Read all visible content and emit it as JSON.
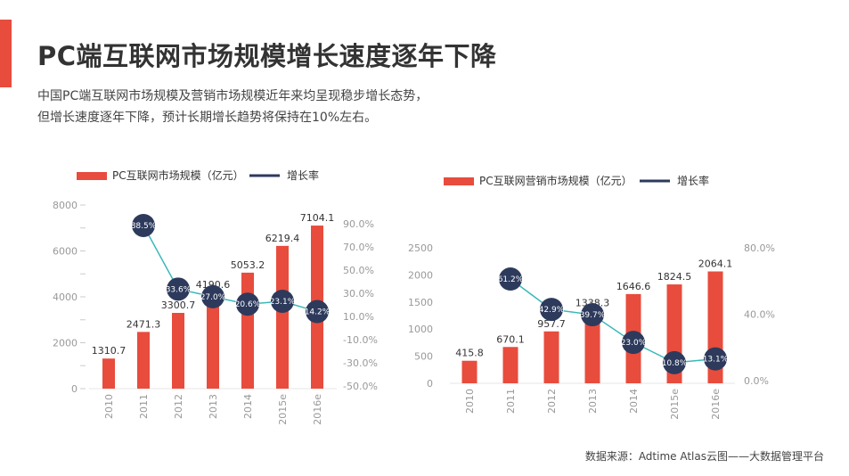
{
  "header": {
    "title": "PC端互联网市场规模增长速度逐年下降",
    "subtitle_line1": "中国PC端互联网市场规模及营销市场规模近年来均呈现稳步增长态势，",
    "subtitle_line2": "但增长速度逐年下降，预计长期增长趋势将保持在10%左右。"
  },
  "footer": {
    "source": "数据来源：Adtime  Atlas云图——大数据管理平台"
  },
  "colors": {
    "accent": "#e84c3d",
    "bar": "#e84c3d",
    "line": "#3bb8b8",
    "marker": "#2d3a5c"
  },
  "chart_data": [
    {
      "type": "bar",
      "legend": {
        "bar": "PC互联网市场规模（亿元）",
        "line": "增长率"
      },
      "categories": [
        "2010",
        "2011",
        "2012",
        "2013",
        "2014",
        "2015e",
        "2016e"
      ],
      "values": [
        1310.7,
        2471.3,
        3300.7,
        4190.6,
        5053.2,
        6219.4,
        7104.1
      ],
      "value_labels": [
        "1310.7",
        "2471.3",
        "3300.7",
        "4190.6",
        "5053.2",
        "6219.4",
        "7104.1"
      ],
      "ylim": [
        0,
        8000
      ],
      "yticks": [
        0,
        2000,
        4000,
        6000,
        8000
      ],
      "ytick_labels": [
        "0",
        "2000",
        "4000",
        "6000",
        "8000"
      ],
      "rate_series": {
        "name": "增长率",
        "x_index": [
          1,
          2,
          3,
          4,
          5,
          6
        ],
        "values": [
          88.5,
          33.6,
          27.0,
          20.6,
          23.1,
          14.2
        ],
        "labels": [
          "88.5%",
          "33.6%",
          "27.0%",
          "20.6%",
          "23.1%",
          "14.2%"
        ]
      },
      "y2lim": [
        -50,
        90
      ],
      "y2ticks": [
        -50,
        -30,
        -10,
        10,
        30,
        50,
        70,
        90
      ],
      "y2tick_labels": [
        "-50.0%",
        "-30.0%",
        "-10.0%",
        "10.0%",
        "30.0%",
        "50.0%",
        "70.0%",
        "90.0%"
      ]
    },
    {
      "type": "bar",
      "legend": {
        "bar": "PC互联网营销市场规模（亿元）",
        "line": "增长率"
      },
      "categories": [
        "2010",
        "2011",
        "2012",
        "2013",
        "2014",
        "2015e",
        "2016e"
      ],
      "values": [
        415.8,
        670.1,
        957.7,
        1338.3,
        1646.6,
        1824.5,
        2064.1
      ],
      "value_labels": [
        "415.8",
        "670.1",
        "957.7",
        "1338.3",
        "1646.6",
        "1824.5",
        "2064.1"
      ],
      "ylim": [
        0,
        2500
      ],
      "yticks": [
        0,
        500,
        1000,
        1500,
        2000,
        2500
      ],
      "ytick_labels": [
        "0",
        "500",
        "1000",
        "1500",
        "2000",
        "2500"
      ],
      "rate_series": {
        "name": "增长率",
        "x_index": [
          1,
          2,
          3,
          4,
          5,
          6
        ],
        "values": [
          61.2,
          42.9,
          39.7,
          23.0,
          10.8,
          13.1
        ],
        "labels": [
          "61.2%",
          "42.9%",
          "39.7%",
          "23.0%",
          "10.8%",
          "13.1%"
        ]
      },
      "y2lim": [
        0,
        80
      ],
      "y2ticks": [
        0,
        40,
        80
      ],
      "y2tick_labels": [
        "0.0%",
        "40.0%",
        "80.0%"
      ]
    }
  ]
}
